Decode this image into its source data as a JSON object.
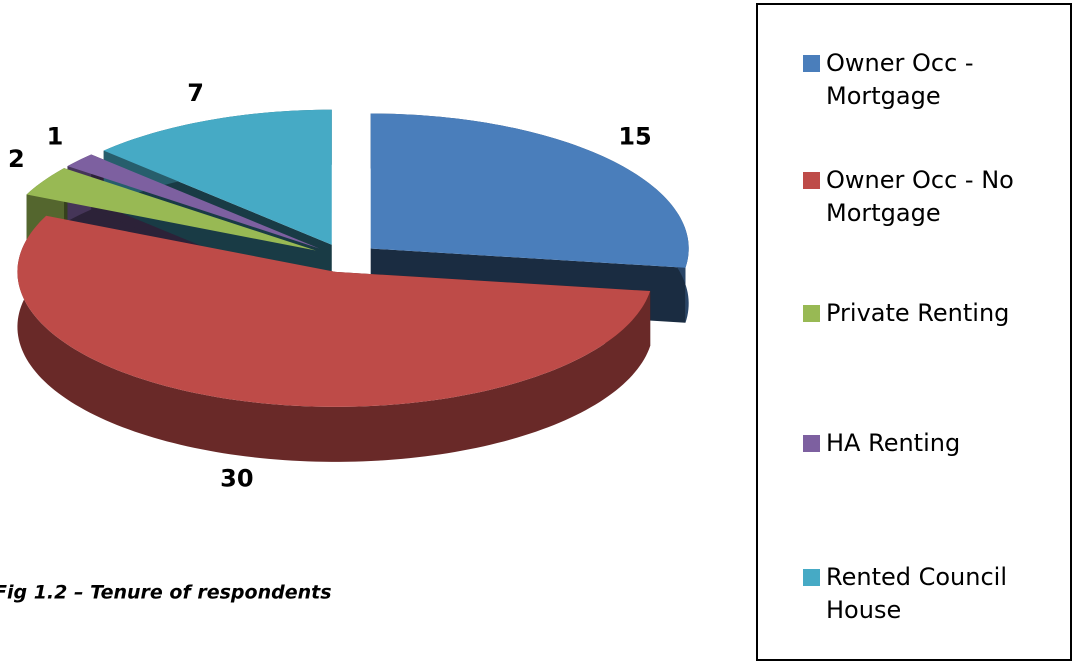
{
  "chart_data": {
    "type": "pie3d",
    "categories": [
      "Owner Occ - Mortgage",
      "Owner Occ - No Mortgage",
      "Private Renting",
      "HA Renting",
      "Rented Council House"
    ],
    "values": [
      15,
      30,
      2,
      1,
      7
    ],
    "colors": [
      "#4a7ebb",
      "#be4b48",
      "#98b954",
      "#7d60a0",
      "#46aac5"
    ],
    "caption": "Fig 1.2 – Tenure of respondents",
    "legend": "right"
  }
}
